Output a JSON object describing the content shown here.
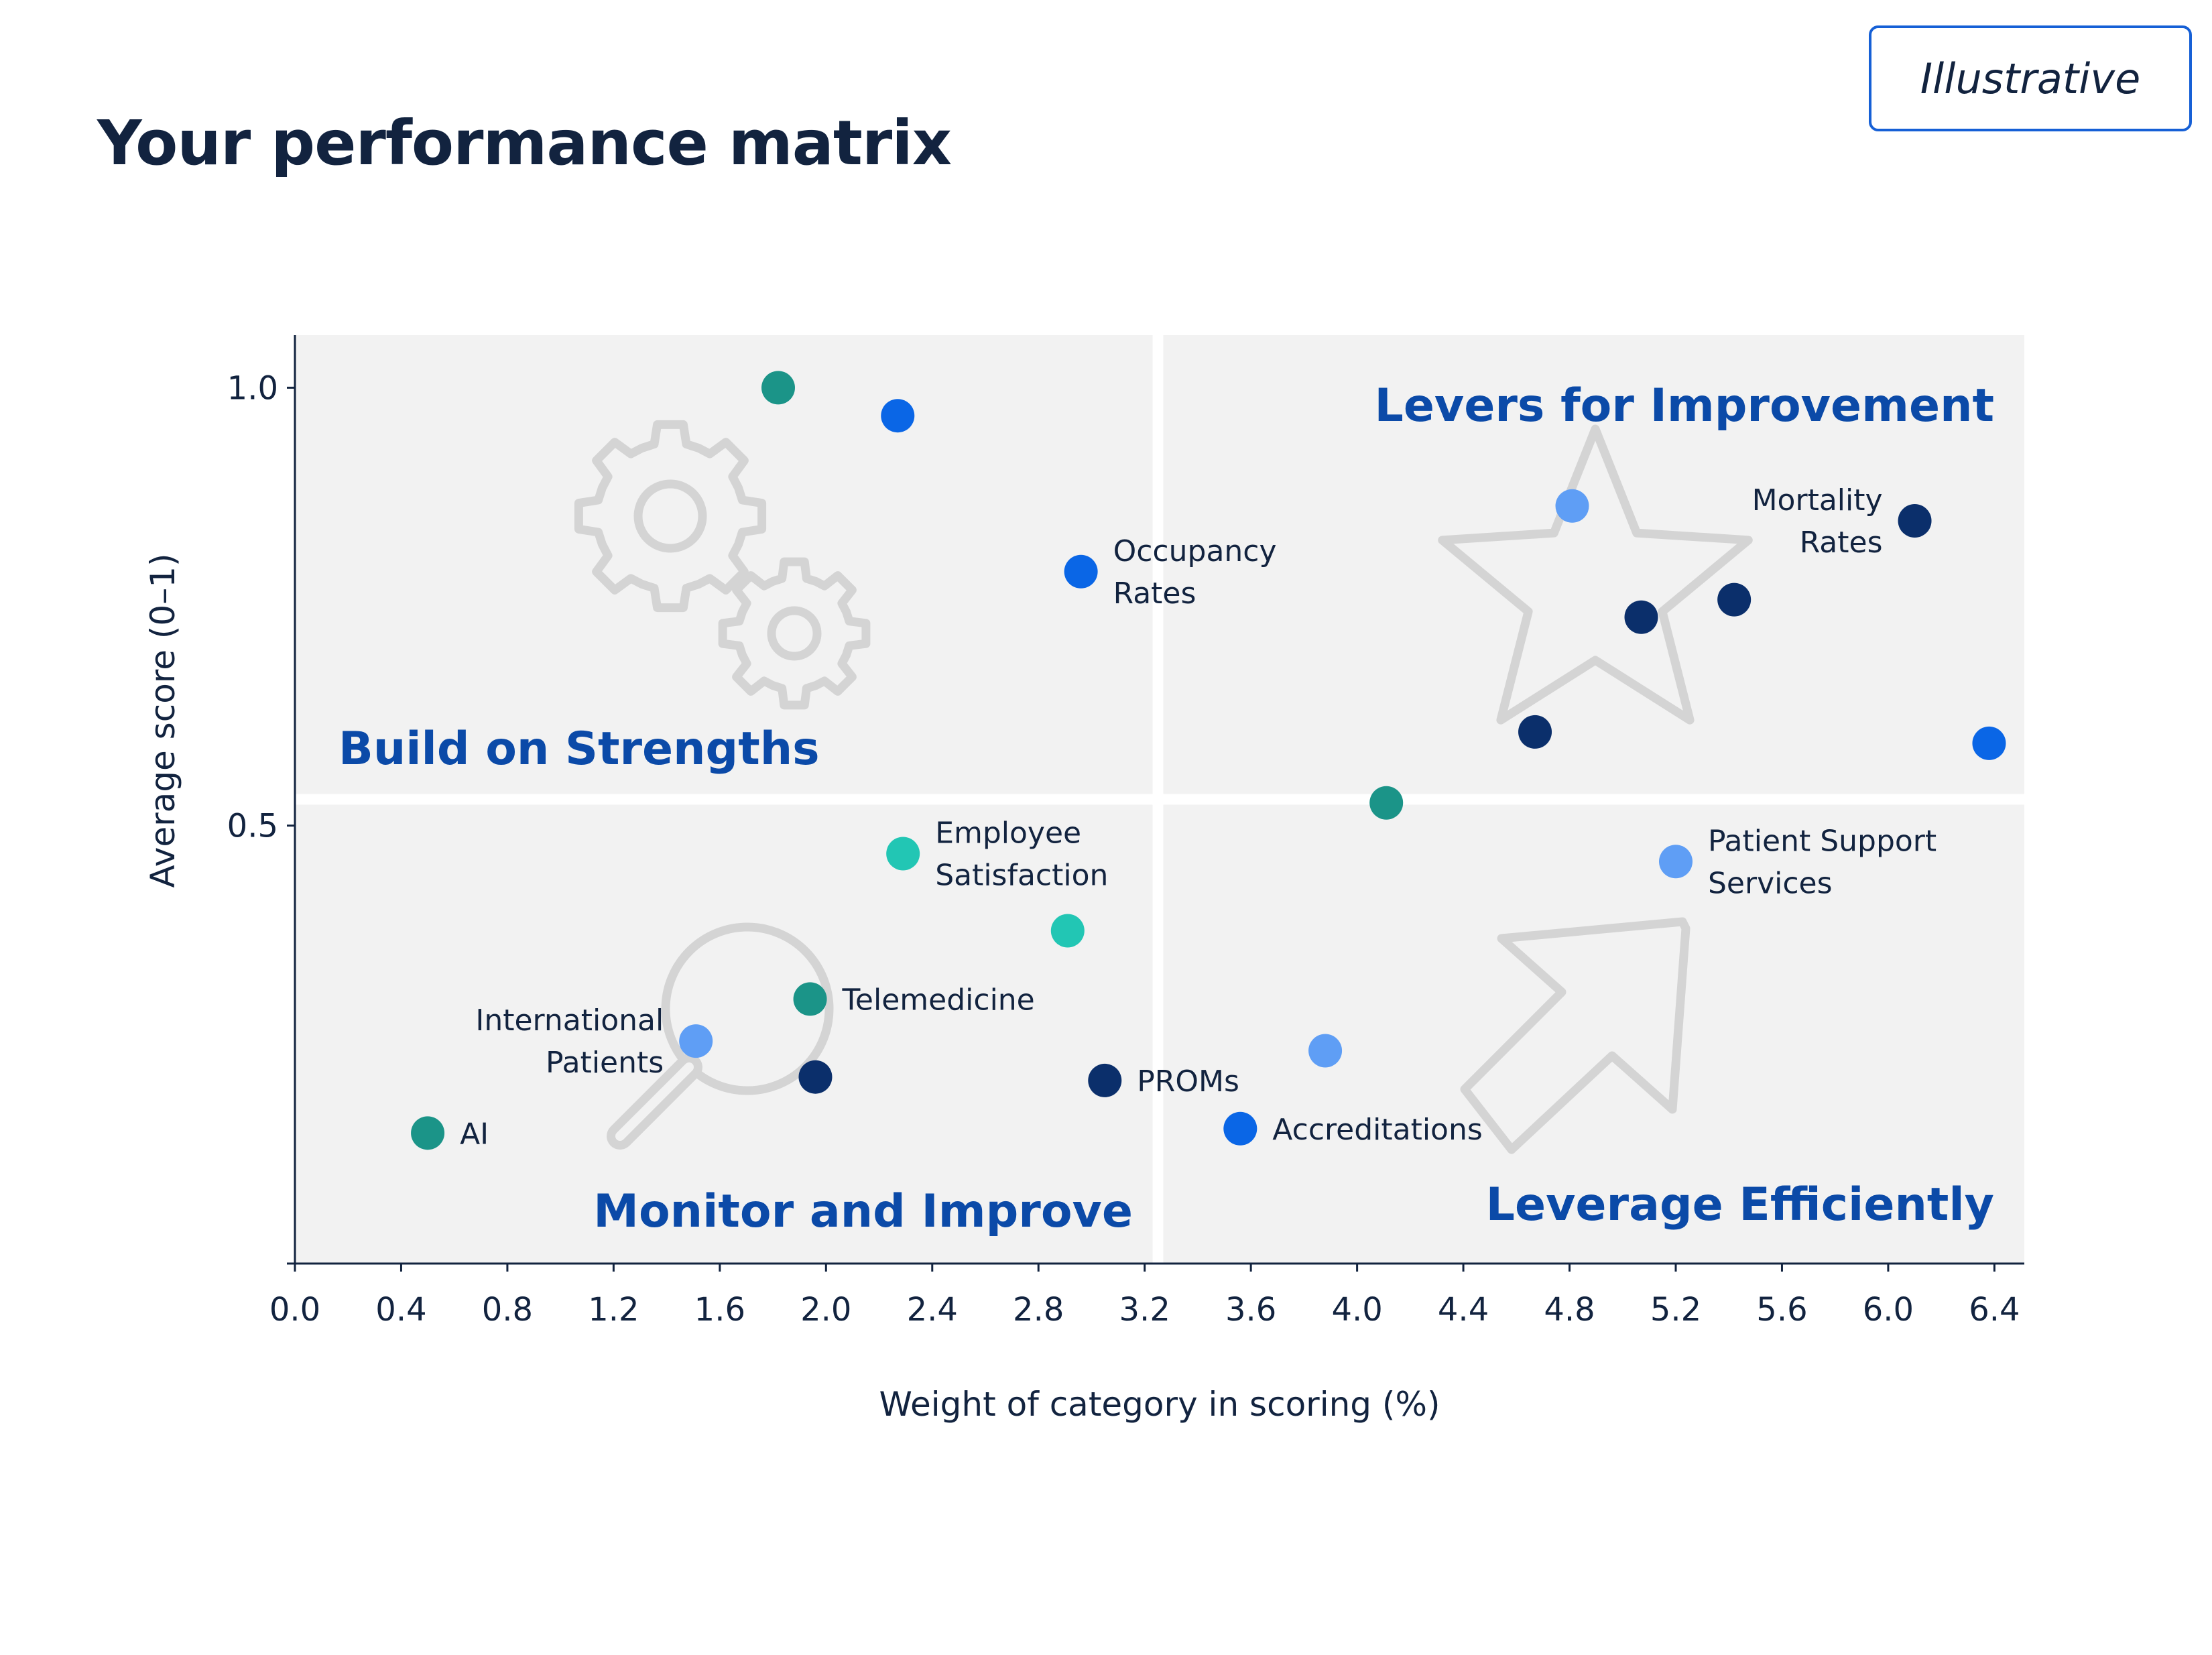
{
  "page": {
    "title": "Your performance matrix",
    "badge": "Illustrative"
  },
  "colors": {
    "quadrant_bg": "#f2f2f2",
    "quadrant_title": "#0b4aa8",
    "axis": "#12233f",
    "icon_outline": "#d4d4d4",
    "teal": "#1b9488",
    "turquoise": "#22c6b4",
    "blue": "#0a66e6",
    "light_blue": "#5f9ef5",
    "navy": "#0b2f6b"
  },
  "chart_data": {
    "type": "scatter",
    "title": "Your performance matrix",
    "xlabel": "Weight of category in scoring (%)",
    "ylabel": "Average score (0–1)",
    "xlim": [
      0.0,
      6.5
    ],
    "ylim": [
      0.0,
      1.06
    ],
    "x_ticks": [
      "0.0",
      "0.4",
      "0.8",
      "1.2",
      "1.6",
      "2.0",
      "2.4",
      "2.8",
      "3.2",
      "3.6",
      "4.0",
      "4.4",
      "4.8",
      "5.2",
      "5.6",
      "6.0",
      "6.4"
    ],
    "y_ticks": [
      "0.5",
      "1.0"
    ],
    "grid": false,
    "quadrant_split": {
      "x": 3.25,
      "y": 0.53
    },
    "quadrants": {
      "top_left": "Build on Strengths",
      "top_right": "Levers for Improvement",
      "bottom_left": "Monitor and Improve",
      "bottom_right": "Leverage Efficiently"
    },
    "points": [
      {
        "x": 1.82,
        "y": 1.0,
        "color": "teal"
      },
      {
        "x": 2.27,
        "y": 0.968,
        "color": "blue"
      },
      {
        "x": 2.96,
        "y": 0.79,
        "color": "blue",
        "label": [
          "Occupancy",
          "Rates"
        ],
        "label_side": "right"
      },
      {
        "x": 4.81,
        "y": 0.865,
        "color": "light_blue"
      },
      {
        "x": 6.1,
        "y": 0.848,
        "color": "navy",
        "label": [
          "Mortality",
          "Rates"
        ],
        "label_side": "left"
      },
      {
        "x": 5.07,
        "y": 0.738,
        "color": "navy"
      },
      {
        "x": 5.42,
        "y": 0.758,
        "color": "navy"
      },
      {
        "x": 4.67,
        "y": 0.607,
        "color": "navy"
      },
      {
        "x": 6.38,
        "y": 0.594,
        "color": "blue"
      },
      {
        "x": 4.11,
        "y": 0.526,
        "color": "teal"
      },
      {
        "x": 2.29,
        "y": 0.468,
        "color": "turquoise",
        "label": [
          "Employee",
          "Satisfaction"
        ],
        "label_side": "right"
      },
      {
        "x": 5.2,
        "y": 0.459,
        "color": "light_blue",
        "label": [
          "Patient Support",
          "Services"
        ],
        "label_side": "right"
      },
      {
        "x": 2.91,
        "y": 0.38,
        "color": "turquoise"
      },
      {
        "x": 1.94,
        "y": 0.302,
        "color": "teal",
        "label": [
          "Telemedicine"
        ],
        "label_side": "right"
      },
      {
        "x": 1.51,
        "y": 0.254,
        "color": "light_blue",
        "label": [
          "International",
          "Patients"
        ],
        "label_side": "left"
      },
      {
        "x": 3.88,
        "y": 0.243,
        "color": "light_blue"
      },
      {
        "x": 1.96,
        "y": 0.213,
        "color": "navy"
      },
      {
        "x": 3.05,
        "y": 0.209,
        "color": "navy",
        "label": [
          "PROMs"
        ],
        "label_side": "right"
      },
      {
        "x": 0.5,
        "y": 0.149,
        "color": "teal",
        "label": [
          "AI"
        ],
        "label_side": "right"
      },
      {
        "x": 3.56,
        "y": 0.154,
        "color": "blue",
        "label": [
          "Accreditations"
        ],
        "label_side": "right"
      }
    ]
  }
}
